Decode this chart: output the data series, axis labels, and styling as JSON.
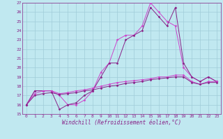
{
  "title": "",
  "xlabel": "Windchill (Refroidissement éolien,°C)",
  "xlim": [
    -0.5,
    23.5
  ],
  "ylim": [
    15,
    27
  ],
  "yticks": [
    15,
    16,
    17,
    18,
    19,
    20,
    21,
    22,
    23,
    24,
    25,
    26,
    27
  ],
  "xticks": [
    0,
    1,
    2,
    3,
    4,
    5,
    6,
    7,
    8,
    9,
    10,
    11,
    12,
    13,
    14,
    15,
    16,
    17,
    18,
    19,
    20,
    21,
    22,
    23
  ],
  "bg_color": "#c0e8f0",
  "grid_color": "#a0ccd8",
  "line_color1": "#cc44cc",
  "line_color2": "#882288",
  "series1_y": [
    16.0,
    17.5,
    17.5,
    17.5,
    17.0,
    16.0,
    16.0,
    16.5,
    17.5,
    19.5,
    20.5,
    23.0,
    23.5,
    23.5,
    24.5,
    27.0,
    26.0,
    25.0,
    24.5,
    20.0,
    19.0,
    18.5,
    19.0,
    18.5
  ],
  "series2_y": [
    16.0,
    17.5,
    17.5,
    17.5,
    15.5,
    16.0,
    16.2,
    17.0,
    17.5,
    19.0,
    20.5,
    20.5,
    23.0,
    23.5,
    24.0,
    26.5,
    25.5,
    24.5,
    26.5,
    20.5,
    19.0,
    18.5,
    19.0,
    18.5
  ],
  "series3_y": [
    16.0,
    17.2,
    17.5,
    17.5,
    17.2,
    17.3,
    17.5,
    17.6,
    17.8,
    18.0,
    18.2,
    18.4,
    18.5,
    18.6,
    18.7,
    18.8,
    19.0,
    19.0,
    19.2,
    19.2,
    18.5,
    18.2,
    18.5,
    18.5
  ],
  "series4_y": [
    16.0,
    17.0,
    17.2,
    17.3,
    17.1,
    17.2,
    17.3,
    17.5,
    17.6,
    17.8,
    18.0,
    18.1,
    18.3,
    18.4,
    18.5,
    18.7,
    18.8,
    18.9,
    19.0,
    19.0,
    18.4,
    18.2,
    18.4,
    18.4
  ],
  "tick_fontsize": 4.5,
  "xlabel_fontsize": 5.5,
  "marker": "D",
  "markersize": 1.5,
  "linewidth": 0.7
}
